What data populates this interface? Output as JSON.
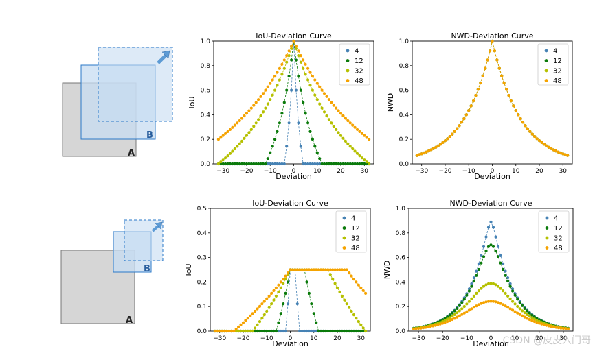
{
  "illustrations": [
    {
      "box_a_label": "A",
      "box_b_label": "B"
    },
    {
      "box_a_label": "A",
      "box_b_label": "B"
    }
  ],
  "colors": {
    "s4": "#4682b4",
    "s12": "#0a7a0a",
    "s32": "#b5c000",
    "s48": "#f5a300",
    "boxA_fill": "#d6d6d6",
    "boxB_fill": "#c7dcf2",
    "boxB_stroke": "#2a78c8",
    "arrow": "#5d9bd5"
  },
  "chart_data": [
    {
      "type": "scatter",
      "title": "IoU-Deviation Curve",
      "xlabel": "Deviation",
      "ylabel": "IoU",
      "xlim": [
        -34,
        34
      ],
      "ylim": [
        0,
        1.0
      ],
      "xticks": [
        -30,
        -20,
        -10,
        0,
        10,
        20,
        30
      ],
      "yticks": [
        0.0,
        0.2,
        0.4,
        0.6,
        0.8,
        1.0
      ],
      "x_range": [
        -32,
        32
      ],
      "legend": "top-right",
      "series": [
        {
          "name": "4",
          "size": 4
        },
        {
          "name": "12",
          "size": 12
        },
        {
          "name": "32",
          "size": 32
        },
        {
          "name": "48",
          "size": 48
        }
      ],
      "formula": "iou_same_size"
    },
    {
      "type": "scatter",
      "title": "NWD-Deviation Curve",
      "xlabel": "Deviation",
      "ylabel": "NWD",
      "xlim": [
        -34,
        34
      ],
      "ylim": [
        0,
        1.0
      ],
      "xticks": [
        -30,
        -20,
        -10,
        0,
        10,
        20,
        30
      ],
      "yticks": [
        0.0,
        0.2,
        0.4,
        0.6,
        0.8,
        1.0
      ],
      "x_range": [
        -32,
        32
      ],
      "legend": "top-right",
      "series": [
        {
          "name": "4",
          "size": 4
        },
        {
          "name": "12",
          "size": 12
        },
        {
          "name": "32",
          "size": 32
        },
        {
          "name": "48",
          "size": 48
        }
      ],
      "formula": "nwd_same_size"
    },
    {
      "type": "scatter",
      "title": "IoU-Deviation Curve",
      "xlabel": "Deviation",
      "ylabel": "IoU",
      "xlim": [
        -34,
        34
      ],
      "ylim": [
        0,
        0.5
      ],
      "xticks": [
        -30,
        -20,
        -10,
        0,
        10,
        20,
        30
      ],
      "yticks": [
        0.0,
        0.1,
        0.2,
        0.3,
        0.4,
        0.5
      ],
      "x_range": [
        -32,
        32
      ],
      "legend": "top-right",
      "series": [
        {
          "name": "4",
          "size": 4
        },
        {
          "name": "12",
          "size": 12
        },
        {
          "name": "32",
          "size": 32
        },
        {
          "name": "48",
          "size": 48
        }
      ],
      "formula": "iou_half_size"
    },
    {
      "type": "scatter",
      "title": "NWD-Deviation Curve",
      "xlabel": "Deviation",
      "ylabel": "NWD",
      "xlim": [
        -34,
        34
      ],
      "ylim": [
        0,
        1.0
      ],
      "xticks": [
        -30,
        -20,
        -10,
        0,
        10,
        20,
        30
      ],
      "yticks": [
        0.0,
        0.2,
        0.4,
        0.6,
        0.8,
        1.0
      ],
      "x_range": [
        -32,
        32
      ],
      "legend": "top-right",
      "series": [
        {
          "name": "4",
          "size": 4
        },
        {
          "name": "12",
          "size": 12
        },
        {
          "name": "32",
          "size": 32
        },
        {
          "name": "48",
          "size": 48
        }
      ],
      "formula": "nwd_half_size"
    }
  ],
  "watermark": "CSDN @皮皮入门哥"
}
